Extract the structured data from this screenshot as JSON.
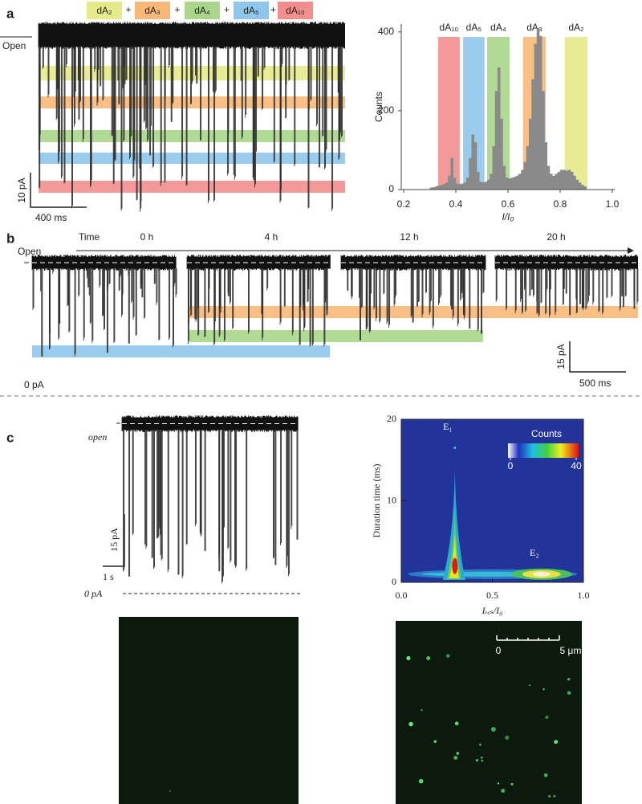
{
  "panel_a": {
    "label": "a",
    "separator": "+",
    "open_label": "Open",
    "scale_current": "10 pA",
    "scale_time": "400 ms",
    "legend": [
      {
        "name": "dA₂",
        "color": "#e6eb8a"
      },
      {
        "name": "dA₃",
        "color": "#f8b878"
      },
      {
        "name": "dA₄",
        "color": "#a9d68a"
      },
      {
        "name": "dA₅",
        "color": "#8fc7ec"
      },
      {
        "name": "dA₁₀",
        "color": "#f28e8e"
      }
    ]
  },
  "chart_data": [
    {
      "type": "histogram",
      "x_label": "I/I₀",
      "y_label": "Counts",
      "color": "#8a8a8a",
      "xlim": [
        0.2,
        1.0
      ],
      "xticks": [
        0.2,
        0.4,
        0.6,
        0.8,
        {
          "value": 1,
          "label": "1.0"
        }
      ],
      "ylim": [
        0,
        420
      ],
      "yticks": [
        0,
        200,
        400
      ],
      "bands": [
        {
          "name": "dA₁₀",
          "color": "#f28e8e",
          "range": [
            0.332,
            0.415
          ]
        },
        {
          "name": "dA₅",
          "color": "#8fc7ec",
          "range": [
            0.428,
            0.51
          ]
        },
        {
          "name": "dA₄",
          "color": "#a9d68a",
          "range": [
            0.52,
            0.606
          ]
        },
        {
          "name": "dA₃",
          "color": "#f8b878",
          "range": [
            0.658,
            0.745
          ]
        },
        {
          "name": "dA₂",
          "color": "#e6eb8a",
          "range": [
            0.818,
            0.905
          ]
        }
      ],
      "bins": [
        0.3,
        0.31,
        0.32,
        0.33,
        0.34,
        0.35,
        0.36,
        0.37,
        0.38,
        0.39,
        0.4,
        0.41,
        0.42,
        0.43,
        0.44,
        0.45,
        0.46,
        0.47,
        0.48,
        0.49,
        0.5,
        0.51,
        0.52,
        0.53,
        0.54,
        0.55,
        0.56,
        0.57,
        0.58,
        0.59,
        0.6,
        0.61,
        0.62,
        0.63,
        0.64,
        0.65,
        0.66,
        0.67,
        0.68,
        0.69,
        0.7,
        0.71,
        0.72,
        0.73,
        0.74,
        0.75,
        0.76,
        0.77,
        0.78,
        0.79,
        0.8,
        0.81,
        0.82,
        0.83,
        0.84,
        0.85,
        0.86,
        0.87,
        0.88,
        0.89,
        0.9
      ],
      "counts": [
        5,
        6,
        8,
        10,
        12,
        14,
        18,
        35,
        80,
        30,
        15,
        14,
        15,
        18,
        30,
        80,
        140,
        120,
        45,
        20,
        18,
        20,
        25,
        40,
        110,
        250,
        310,
        180,
        60,
        30,
        28,
        30,
        32,
        35,
        40,
        50,
        70,
        110,
        180,
        280,
        370,
        410,
        390,
        250,
        120,
        60,
        40,
        35,
        40,
        45,
        50,
        50,
        48,
        50,
        45,
        35,
        25,
        18,
        12,
        8
      ]
    },
    {
      "type": "heatmap",
      "x_label": "Iᵣₑₛ/I₀",
      "y_label": "Duration time (ms)",
      "xlim": [
        0,
        1
      ],
      "xticks": [
        {
          "value": 0,
          "label": "0.0"
        },
        0.5,
        {
          "value": 1,
          "label": "1.0"
        }
      ],
      "ylim": [
        0,
        20
      ],
      "yticks": [
        0,
        10,
        20
      ],
      "colorbar": {
        "title": "Counts",
        "range": [
          0,
          40
        ],
        "ticks": [
          0,
          40
        ]
      },
      "peaks": [
        {
          "name": "E₁",
          "x": 0.29,
          "y": 2
        },
        {
          "name": "E₂",
          "x": 0.77,
          "y": 1
        }
      ]
    }
  ],
  "panel_b": {
    "label": "b",
    "open_label": "Open",
    "time_label": "Time",
    "times": [
      "0 h",
      "4 h",
      "12 h",
      "20 h"
    ],
    "scale_current": "15 pA",
    "scale_time": "500 ms",
    "zero_label": "0 pA"
  },
  "panel_c": {
    "label": "c",
    "open_label": "open",
    "scale_current": "15 pA",
    "scale_time": "1 s",
    "zero_label": "0 pA",
    "image_scale": {
      "start": "0",
      "end": "5 μm"
    }
  }
}
